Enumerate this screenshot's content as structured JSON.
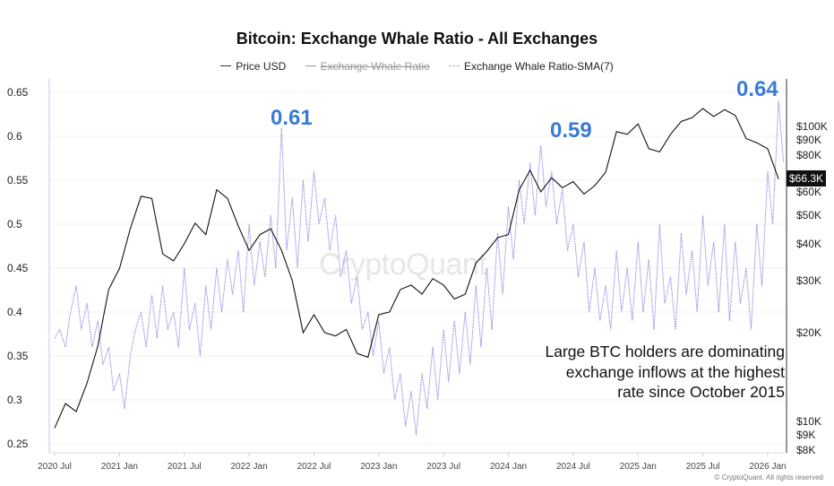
{
  "chart_data": {
    "type": "line",
    "title": "Bitcoin: Exchange Whale Ratio - All Exchanges",
    "legend": {
      "placement": "top-center",
      "items": [
        {
          "label": "Price USD",
          "hidden": false
        },
        {
          "label": "Exchange Whale Ratio",
          "hidden": true
        },
        {
          "label": "Exchange Whale Ratio-SMA(7)",
          "hidden": false
        }
      ]
    },
    "left_axis": {
      "ticks": [
        "0.65",
        "0.6",
        "0.55",
        "0.5",
        "0.45",
        "0.4",
        "0.35",
        "0.3",
        "0.25"
      ],
      "range": [
        0.24,
        0.66
      ]
    },
    "right_axis": {
      "scale": "log",
      "ticks": [
        {
          "label": "$100K",
          "value": 100000
        },
        {
          "label": "$90K",
          "value": 90000
        },
        {
          "label": "$80K",
          "value": 80000
        },
        {
          "label": "$60K",
          "value": 60000
        },
        {
          "label": "$50K",
          "value": 50000
        },
        {
          "label": "$40K",
          "value": 40000
        },
        {
          "label": "$30K",
          "value": 30000
        },
        {
          "label": "$20K",
          "value": 20000
        },
        {
          "label": "$10K",
          "value": 10000
        },
        {
          "label": "$9K",
          "value": 9000
        },
        {
          "label": "$8K",
          "value": 8000
        }
      ],
      "current_price_label": "$66.3K"
    },
    "x_axis": {
      "ticks": [
        "2020 Jul",
        "2021 Jan",
        "2021 Jul",
        "2022 Jan",
        "2022 Jul",
        "2023 Jan",
        "2023 Jul",
        "2024 Jan",
        "2024 Jul",
        "2025 Jan",
        "2025 Jul",
        "2026 Jan"
      ]
    },
    "grid": true,
    "colors": {
      "price": "#111111",
      "sma": "#7b6fe0",
      "annotation": "#3a7bd5"
    },
    "series": [
      {
        "name": "Price USD",
        "axis": "right",
        "x": [
          "2020-07",
          "2020-08",
          "2020-09",
          "2020-10",
          "2020-11",
          "2020-12",
          "2021-01",
          "2021-02",
          "2021-03",
          "2021-04",
          "2021-05",
          "2021-06",
          "2021-07",
          "2021-08",
          "2021-09",
          "2021-10",
          "2021-11",
          "2021-12",
          "2022-01",
          "2022-02",
          "2022-03",
          "2022-04",
          "2022-05",
          "2022-06",
          "2022-07",
          "2022-08",
          "2022-09",
          "2022-10",
          "2022-11",
          "2022-12",
          "2023-01",
          "2023-02",
          "2023-03",
          "2023-04",
          "2023-05",
          "2023-06",
          "2023-07",
          "2023-08",
          "2023-09",
          "2023-10",
          "2023-11",
          "2023-12",
          "2024-01",
          "2024-02",
          "2024-03",
          "2024-04",
          "2024-05",
          "2024-06",
          "2024-07",
          "2024-08",
          "2024-09",
          "2024-10",
          "2024-11",
          "2024-12",
          "2025-01",
          "2025-02",
          "2025-03",
          "2025-04",
          "2025-05",
          "2025-06",
          "2025-07",
          "2025-08",
          "2025-09",
          "2025-10",
          "2025-11",
          "2025-12",
          "2026-01",
          "2026-02"
        ],
        "y": [
          9500,
          11500,
          10800,
          13500,
          18000,
          28000,
          33000,
          45000,
          58000,
          57000,
          37000,
          35000,
          40000,
          47000,
          43000,
          61000,
          57000,
          46000,
          38000,
          43000,
          45000,
          38000,
          30000,
          20000,
          23000,
          20000,
          19500,
          20500,
          17000,
          16500,
          23000,
          23500,
          28000,
          29000,
          27000,
          30500,
          29000,
          26000,
          27000,
          34500,
          37700,
          42000,
          43000,
          61000,
          71000,
          60000,
          67000,
          62000,
          65000,
          59000,
          63000,
          70000,
          96000,
          94000,
          102000,
          84000,
          82000,
          94000,
          104000,
          107000,
          115000,
          108000,
          114000,
          109000,
          91000,
          88000,
          84000,
          66300
        ]
      },
      {
        "name": "Exchange Whale Ratio-SMA(7)",
        "axis": "left",
        "x": [
          "2020-07-01",
          "2020-07-15",
          "2020-08-01",
          "2020-08-15",
          "2020-09-01",
          "2020-09-15",
          "2020-10-01",
          "2020-10-15",
          "2020-11-01",
          "2020-11-15",
          "2020-12-01",
          "2020-12-15",
          "2021-01-01",
          "2021-01-15",
          "2021-02-01",
          "2021-02-15",
          "2021-03-01",
          "2021-03-15",
          "2021-04-01",
          "2021-04-15",
          "2021-05-01",
          "2021-05-15",
          "2021-06-01",
          "2021-06-15",
          "2021-07-01",
          "2021-07-15",
          "2021-08-01",
          "2021-08-15",
          "2021-09-01",
          "2021-09-15",
          "2021-10-01",
          "2021-10-15",
          "2021-11-01",
          "2021-11-15",
          "2021-12-01",
          "2021-12-15",
          "2022-01-01",
          "2022-01-15",
          "2022-02-01",
          "2022-02-15",
          "2022-03-01",
          "2022-03-15",
          "2022-04-01",
          "2022-04-15",
          "2022-05-01",
          "2022-05-15",
          "2022-06-01",
          "2022-06-15",
          "2022-07-01",
          "2022-07-15",
          "2022-08-01",
          "2022-08-15",
          "2022-09-01",
          "2022-09-15",
          "2022-10-01",
          "2022-10-15",
          "2022-11-01",
          "2022-11-15",
          "2022-12-01",
          "2022-12-15",
          "2023-01-01",
          "2023-01-15",
          "2023-02-01",
          "2023-02-15",
          "2023-03-01",
          "2023-03-15",
          "2023-04-01",
          "2023-04-15",
          "2023-05-01",
          "2023-05-15",
          "2023-06-01",
          "2023-06-15",
          "2023-07-01",
          "2023-07-15",
          "2023-08-01",
          "2023-08-15",
          "2023-09-01",
          "2023-09-15",
          "2023-10-01",
          "2023-10-15",
          "2023-11-01",
          "2023-11-15",
          "2023-12-01",
          "2023-12-15",
          "2024-01-01",
          "2024-01-15",
          "2024-02-01",
          "2024-02-15",
          "2024-03-01",
          "2024-03-15",
          "2024-04-01",
          "2024-04-15",
          "2024-05-01",
          "2024-05-15",
          "2024-06-01",
          "2024-06-15",
          "2024-07-01",
          "2024-07-15",
          "2024-08-01",
          "2024-08-15",
          "2024-09-01",
          "2024-09-15",
          "2024-10-01",
          "2024-10-15",
          "2024-11-01",
          "2024-11-15",
          "2024-12-01",
          "2024-12-15",
          "2025-01-01",
          "2025-01-15",
          "2025-02-01",
          "2025-02-15",
          "2025-03-01",
          "2025-03-15",
          "2025-04-01",
          "2025-04-15",
          "2025-05-01",
          "2025-05-15",
          "2025-06-01",
          "2025-06-15",
          "2025-07-01",
          "2025-07-15",
          "2025-08-01",
          "2025-08-15",
          "2025-09-01",
          "2025-09-15",
          "2025-10-01",
          "2025-10-15",
          "2025-11-01",
          "2025-11-15",
          "2025-12-01",
          "2025-12-15",
          "2026-01-01",
          "2026-01-15",
          "2026-02-01",
          "2026-02-15"
        ],
        "y": [
          0.37,
          0.38,
          0.36,
          0.4,
          0.43,
          0.38,
          0.41,
          0.36,
          0.39,
          0.34,
          0.36,
          0.31,
          0.33,
          0.29,
          0.35,
          0.38,
          0.4,
          0.36,
          0.42,
          0.37,
          0.43,
          0.38,
          0.4,
          0.36,
          0.45,
          0.38,
          0.41,
          0.35,
          0.43,
          0.38,
          0.45,
          0.4,
          0.46,
          0.42,
          0.47,
          0.4,
          0.5,
          0.43,
          0.48,
          0.44,
          0.51,
          0.45,
          0.61,
          0.47,
          0.53,
          0.45,
          0.55,
          0.48,
          0.56,
          0.5,
          0.53,
          0.47,
          0.51,
          0.44,
          0.47,
          0.41,
          0.44,
          0.38,
          0.4,
          0.35,
          0.39,
          0.33,
          0.36,
          0.3,
          0.33,
          0.27,
          0.31,
          0.26,
          0.33,
          0.29,
          0.36,
          0.3,
          0.38,
          0.32,
          0.39,
          0.33,
          0.4,
          0.34,
          0.43,
          0.36,
          0.45,
          0.38,
          0.49,
          0.42,
          0.52,
          0.46,
          0.55,
          0.5,
          0.57,
          0.51,
          0.59,
          0.52,
          0.56,
          0.5,
          0.54,
          0.47,
          0.5,
          0.44,
          0.48,
          0.4,
          0.45,
          0.39,
          0.43,
          0.38,
          0.47,
          0.4,
          0.45,
          0.39,
          0.48,
          0.4,
          0.46,
          0.38,
          0.5,
          0.41,
          0.44,
          0.38,
          0.49,
          0.42,
          0.47,
          0.4,
          0.51,
          0.43,
          0.48,
          0.4,
          0.5,
          0.39,
          0.48,
          0.41,
          0.45,
          0.38,
          0.5,
          0.43,
          0.56,
          0.5,
          0.64,
          0.57
        ]
      }
    ],
    "annotations": {
      "peak_2022": "0.61",
      "peak_2024": "0.59",
      "peak_2026": "0.64",
      "note_lines": [
        "Large BTC holders are dominating",
        "exchange inflows at the highest",
        "rate since October 2015"
      ]
    },
    "watermark": "CryptoQuant",
    "copyright": "© CryptoQuant. All rights reserved"
  }
}
